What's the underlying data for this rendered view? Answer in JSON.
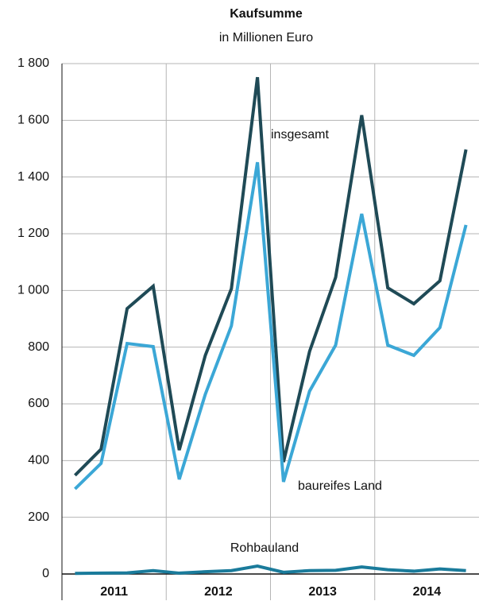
{
  "chart_data": {
    "type": "line",
    "title": "Kaufsumme",
    "subtitle": "in Millionen Euro",
    "categories": [
      null,
      null,
      null,
      null,
      null,
      null,
      null,
      null,
      null,
      null,
      null,
      null,
      null,
      null,
      null,
      null
    ],
    "groups": [
      "2011",
      "2012",
      "2013",
      "2014"
    ],
    "series": [
      {
        "name": "insgesamt",
        "color": "#1f4a56",
        "values": [
          348,
          440,
          936,
          1015,
          437,
          771,
          1006,
          1752,
          395,
          785,
          1046,
          1618,
          1009,
          953,
          1034,
          1497
        ]
      },
      {
        "name": "baureifes Land",
        "color": "#3ba7d6",
        "values": [
          300,
          390,
          813,
          802,
          334,
          634,
          875,
          1452,
          325,
          645,
          807,
          1270,
          807,
          771,
          869,
          1231
        ]
      },
      {
        "name": "Rohbauland",
        "color": "#1a7b9b",
        "values": [
          2,
          3,
          4,
          12,
          3,
          8,
          12,
          28,
          6,
          12,
          13,
          25,
          15,
          10,
          18,
          12
        ]
      }
    ],
    "ylim": [
      0,
      1800
    ],
    "yticks": [
      0,
      200,
      400,
      600,
      800,
      {
        "value": 1000,
        "label": "1 000"
      },
      {
        "value": 1200,
        "label": "1 200"
      },
      {
        "value": 1400,
        "label": "1 400"
      },
      {
        "value": 1600,
        "label": "1 600"
      },
      {
        "value": 1800,
        "label": "1 800"
      }
    ],
    "grid": true
  }
}
